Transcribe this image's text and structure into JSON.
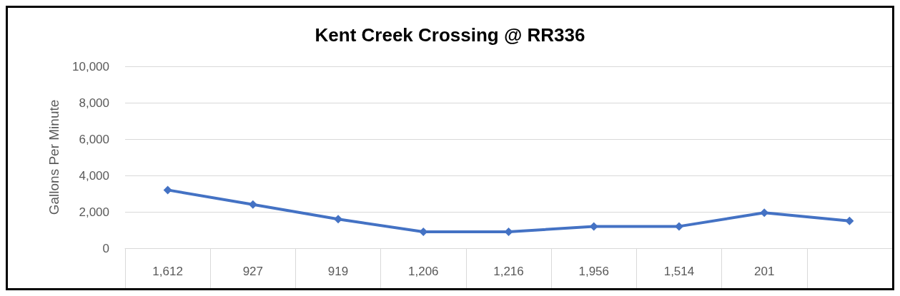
{
  "chart_data": {
    "type": "line",
    "title": "Kent Creek Crossing @ RR336",
    "ylabel": "Gallons Per Minute",
    "categories": [
      "1,612",
      "927",
      "919",
      "1,206",
      "1,216",
      "1,956",
      "1,514",
      "201",
      null
    ],
    "series": [
      {
        "color": "#4472c4",
        "values": [
          3200,
          2400,
          1600,
          900,
          900,
          1200,
          1200,
          1950,
          1500
        ]
      }
    ],
    "ylim": [
      0,
      10000
    ],
    "yticks": [
      0,
      {
        "value": 2000,
        "label": "2,000"
      },
      {
        "value": 4000,
        "label": "4,000"
      },
      {
        "value": 6000,
        "label": "6,000"
      },
      {
        "value": 8000,
        "label": "8,000"
      },
      {
        "value": 10000,
        "label": "10,000"
      }
    ],
    "grid": "y",
    "marker": "diamond"
  }
}
